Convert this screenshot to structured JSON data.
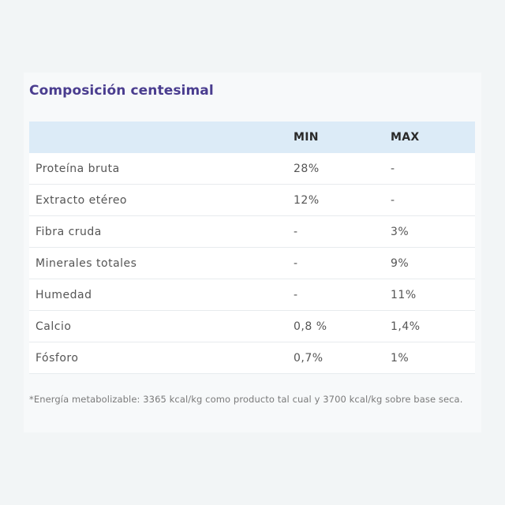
{
  "section": {
    "title": "Composición centesimal"
  },
  "table": {
    "headers": [
      "",
      "MIN",
      "MAX"
    ],
    "rows": [
      {
        "name": "Proteína bruta",
        "min": "28%",
        "max": "-"
      },
      {
        "name": "Extracto etéreo",
        "min": "12%",
        "max": "-"
      },
      {
        "name": "Fibra cruda",
        "min": "-",
        "max": "3%"
      },
      {
        "name": "Minerales totales",
        "min": "-",
        "max": "9%"
      },
      {
        "name": "Humedad",
        "min": "-",
        "max": "11%"
      },
      {
        "name": "Calcio",
        "min": "0,8 %",
        "max": "1,4%"
      },
      {
        "name": "Fósforo",
        "min": "0,7%",
        "max": "1%"
      }
    ]
  },
  "footnote": "*Energía metabolizable: 3365 kcal/kg como producto tal cual y 3700 kcal/kg sobre base seca.",
  "colors": {
    "title": "#4a3d8f",
    "header_bg": "#dcebf7",
    "page_bg": "#f2f5f6"
  }
}
